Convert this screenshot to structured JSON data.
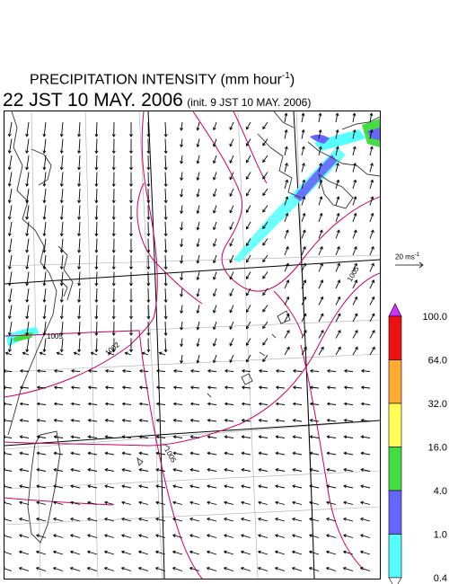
{
  "title": {
    "line1_text": "PRECIPITATION INTENSITY (mm hour",
    "line1_sup": "-1",
    "line1_end": ")",
    "line2_main": "22 JST 10 MAY. 2006",
    "line2_init": "(init. 9 JST 10 MAY. 2006)"
  },
  "contours": [
    {
      "label": "1005"
    },
    {
      "label": "1005"
    },
    {
      "label": "1002"
    },
    {
      "label": "1005"
    }
  ],
  "wind_legend": {
    "label_value": "20 ms",
    "label_sup": "-1"
  },
  "colorbar": {
    "levels": [
      "100.0",
      "64.0",
      "32.0",
      "16.0",
      "4.0",
      "1.0",
      "0.4"
    ],
    "colors": [
      "#cc33ff",
      "#ee1111",
      "#ffaa33",
      "#ffff55",
      "#44dd44",
      "#6666ff",
      "#55ffff",
      "#ffffff"
    ]
  },
  "colors": {
    "isobar": "#cc0066",
    "coast": "#333333",
    "grid": "#aaaaaa",
    "arrow": "#000000"
  }
}
